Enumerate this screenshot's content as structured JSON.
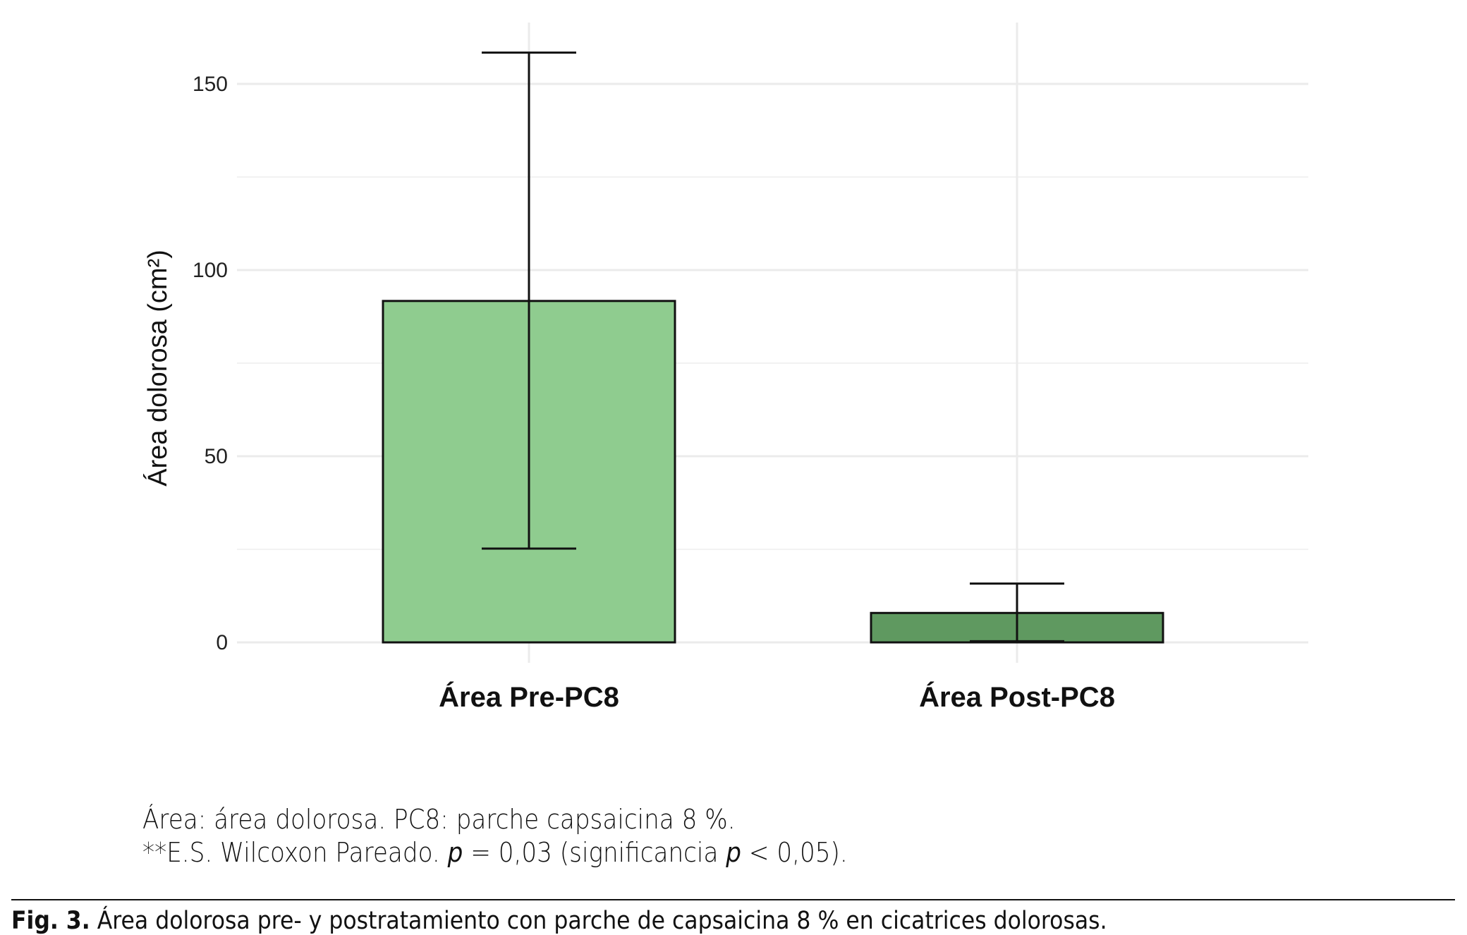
{
  "chart_data": {
    "type": "bar",
    "title": "",
    "xlabel": "",
    "ylabel": "Área dolorosa (cm²)",
    "ylim": [
      0,
      165
    ],
    "yticks": [
      0,
      50,
      100,
      150
    ],
    "grid": true,
    "categories": [
      "Área Pre-PC8",
      "Área Post-PC8"
    ],
    "values": [
      91.7,
      7.9
    ],
    "error_low": [
      25.2,
      0.3
    ],
    "error_high": [
      158.4,
      15.8
    ],
    "colors": [
      "#8fcc8f",
      "#5f9960"
    ]
  },
  "notes": {
    "line1": "Área: área dolorosa. PC8: parche capsaicina 8 %.",
    "line2_a": "**E.S. Wilcoxon Pareado. ",
    "line2_p1": "p",
    "line2_b": " = 0,03 (significancia ",
    "line2_p2": "p",
    "line2_c": " < 0,05)."
  },
  "caption": {
    "label": "Fig. 3.",
    "text": " Área dolorosa pre- y postratamiento con parche de capsaicina 8 % en cicatrices dolorosas."
  }
}
